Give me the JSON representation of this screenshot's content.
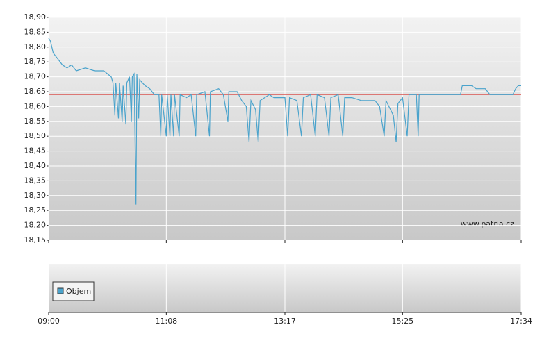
{
  "chart_data": {
    "type": "line",
    "x": [
      "09:00",
      "09:02",
      "09:05",
      "09:10",
      "09:15",
      "09:20",
      "09:25",
      "09:30",
      "09:40",
      "09:50",
      "10:00",
      "10:08",
      "10:10",
      "10:12",
      "10:13",
      "10:16",
      "10:17",
      "10:20",
      "10:21",
      "10:24",
      "10:25",
      "10:28",
      "10:30",
      "10:31",
      "10:33",
      "10:35",
      "10:36",
      "10:38",
      "10:39",
      "10:42",
      "10:45",
      "10:50",
      "10:55",
      "11:00",
      "11:02",
      "11:03",
      "11:08",
      "11:09",
      "11:12",
      "11:13",
      "11:16",
      "11:17",
      "11:22",
      "11:23",
      "11:30",
      "11:35",
      "11:40",
      "11:41",
      "11:50",
      "11:55",
      "11:56",
      "12:05",
      "12:10",
      "12:15",
      "12:16",
      "12:25",
      "12:30",
      "12:35",
      "12:38",
      "12:40",
      "12:45",
      "12:48",
      "12:50",
      "12:55",
      "13:00",
      "13:05",
      "13:10",
      "13:17",
      "13:20",
      "13:22",
      "13:30",
      "13:35",
      "13:37",
      "13:45",
      "13:50",
      "13:52",
      "14:00",
      "14:05",
      "14:07",
      "14:15",
      "14:20",
      "14:22",
      "14:30",
      "14:40",
      "14:50",
      "14:55",
      "15:00",
      "15:05",
      "15:07",
      "15:15",
      "15:18",
      "15:20",
      "15:25",
      "15:30",
      "15:32",
      "15:40",
      "15:42",
      "15:43",
      "15:55",
      "16:00",
      "16:28",
      "16:30",
      "16:40",
      "16:45",
      "16:55",
      "17:00",
      "17:10",
      "17:20",
      "17:25",
      "17:28",
      "17:31",
      "17:34"
    ],
    "series": [
      {
        "color": "#4aa3cc",
        "values": [
          18.83,
          18.82,
          18.78,
          18.76,
          18.74,
          18.73,
          18.74,
          18.72,
          18.73,
          18.72,
          18.72,
          18.7,
          18.68,
          18.57,
          18.68,
          18.56,
          18.68,
          18.55,
          18.67,
          18.54,
          18.68,
          18.7,
          18.55,
          18.7,
          18.71,
          18.27,
          18.71,
          18.56,
          18.69,
          18.68,
          18.67,
          18.66,
          18.64,
          18.64,
          18.5,
          18.64,
          18.5,
          18.64,
          18.5,
          18.64,
          18.5,
          18.64,
          18.5,
          18.64,
          18.63,
          18.64,
          18.5,
          18.64,
          18.65,
          18.5,
          18.65,
          18.66,
          18.64,
          18.55,
          18.65,
          18.65,
          18.62,
          18.6,
          18.48,
          18.62,
          18.59,
          18.48,
          18.62,
          18.63,
          18.64,
          18.63,
          18.63,
          18.63,
          18.5,
          18.63,
          18.62,
          18.5,
          18.63,
          18.64,
          18.5,
          18.64,
          18.63,
          18.5,
          18.63,
          18.64,
          18.5,
          18.63,
          18.63,
          18.62,
          18.62,
          18.62,
          18.6,
          18.5,
          18.62,
          18.57,
          18.48,
          18.61,
          18.63,
          18.5,
          18.64,
          18.64,
          18.5,
          18.64,
          18.64,
          18.64,
          18.64,
          18.67,
          18.67,
          18.66,
          18.66,
          18.64,
          18.64,
          18.64,
          18.64,
          18.66,
          18.67,
          18.67
        ]
      }
    ],
    "reference_line": {
      "value": 18.64,
      "color": "#d9534f"
    },
    "xlim": [
      "09:00",
      "17:34"
    ],
    "xticks": [
      "09:00",
      "11:08",
      "13:17",
      "15:25",
      "17:34"
    ],
    "ylim": [
      18.15,
      18.9
    ],
    "yticks": [
      {
        "value": 18.15,
        "label": "18,15"
      },
      {
        "value": 18.2,
        "label": "18,20"
      },
      {
        "value": 18.25,
        "label": "18,25"
      },
      {
        "value": 18.3,
        "label": "18,30"
      },
      {
        "value": 18.35,
        "label": "18,35"
      },
      {
        "value": 18.4,
        "label": "18,40"
      },
      {
        "value": 18.45,
        "label": "18,45"
      },
      {
        "value": 18.5,
        "label": "18,50"
      },
      {
        "value": 18.55,
        "label": "18,55"
      },
      {
        "value": 18.6,
        "label": "18,60"
      },
      {
        "value": 18.65,
        "label": "18,65"
      },
      {
        "value": 18.7,
        "label": "18,70"
      },
      {
        "value": 18.75,
        "label": "18,75"
      },
      {
        "value": 18.8,
        "label": "18,80"
      },
      {
        "value": 18.85,
        "label": "18,85"
      },
      {
        "value": 18.9,
        "label": "18,90"
      }
    ],
    "grid": true,
    "annotation": "www.patria.cz",
    "volume": {
      "name": "Objem",
      "color": "#4aa3cc"
    }
  }
}
